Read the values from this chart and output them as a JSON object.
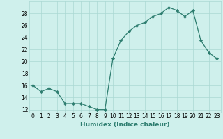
{
  "x": [
    0,
    1,
    2,
    3,
    4,
    5,
    6,
    7,
    8,
    9,
    10,
    11,
    12,
    13,
    14,
    15,
    16,
    17,
    18,
    19,
    20,
    21,
    22,
    23
  ],
  "y": [
    16,
    15,
    15.5,
    15,
    13,
    13,
    13,
    12.5,
    12,
    12,
    20.5,
    23.5,
    25,
    26,
    26.5,
    27.5,
    28,
    29,
    28.5,
    27.5,
    28.5,
    23.5,
    21.5,
    20.5
  ],
  "line_color": "#2d7d6f",
  "marker_color": "#2d7d6f",
  "bg_color": "#cff0ec",
  "grid_color": "#aad8d3",
  "xlabel": "Humidex (Indice chaleur)",
  "ylim": [
    11.5,
    30
  ],
  "xlim": [
    -0.5,
    23.5
  ],
  "yticks": [
    12,
    14,
    16,
    18,
    20,
    22,
    24,
    26,
    28
  ],
  "xticks": [
    0,
    1,
    2,
    3,
    4,
    5,
    6,
    7,
    8,
    9,
    10,
    11,
    12,
    13,
    14,
    15,
    16,
    17,
    18,
    19,
    20,
    21,
    22,
    23
  ],
  "tick_fontsize": 5.5,
  "xlabel_fontsize": 6.5
}
